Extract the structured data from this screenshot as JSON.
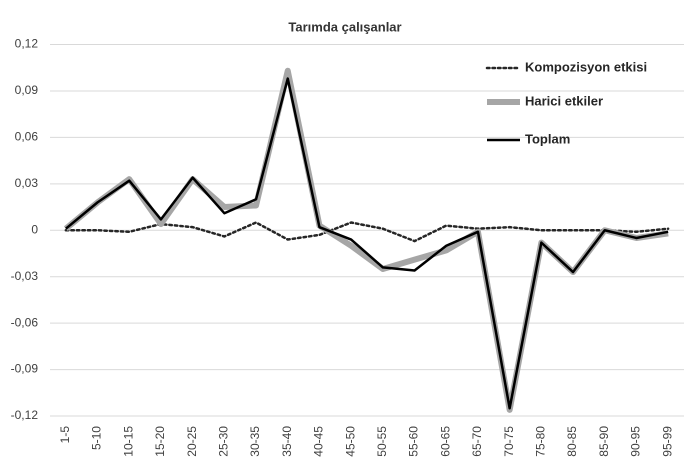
{
  "chart_data": {
    "type": "line",
    "title": "Tarımda çalışanlar",
    "categories": [
      "1-5",
      "5-10",
      "10-15",
      "15-20",
      "20-25",
      "25-30",
      "30-35",
      "35-40",
      "40-45",
      "45-50",
      "50-55",
      "55-60",
      "60-65",
      "65-70",
      "70-75",
      "75-80",
      "80-85",
      "85-90",
      "90-95",
      "95-99"
    ],
    "series": [
      {
        "name": "Kompozisyon etkisi",
        "color": "#262626",
        "line_style": "dotted",
        "values": [
          0.0,
          0.0,
          -0.001,
          0.004,
          0.002,
          -0.004,
          0.005,
          -0.006,
          -0.003,
          0.005,
          0.001,
          -0.007,
          0.003,
          0.001,
          0.002,
          0.0,
          0.0,
          0.0,
          -0.001,
          0.001
        ]
      },
      {
        "name": "Harici etkiler",
        "color": "#a6a6a6",
        "line_style": "solid",
        "values": [
          0.001,
          0.018,
          0.033,
          0.004,
          0.033,
          0.015,
          0.016,
          0.103,
          0.003,
          -0.01,
          -0.025,
          -0.019,
          -0.013,
          -0.001,
          -0.116,
          -0.008,
          -0.027,
          0.0,
          -0.005,
          -0.002
        ]
      },
      {
        "name": "Toplam",
        "color": "#000000",
        "line_style": "solid",
        "values": [
          0.001,
          0.018,
          0.032,
          0.007,
          0.034,
          0.011,
          0.02,
          0.098,
          0.002,
          -0.006,
          -0.024,
          -0.026,
          -0.01,
          -0.001,
          -0.115,
          -0.008,
          -0.027,
          0.0,
          -0.005,
          -0.001
        ]
      }
    ],
    "ylim": [
      -0.12,
      0.12
    ],
    "yticks": [
      {
        "value": -0.12,
        "label": "-0,12"
      },
      {
        "value": -0.09,
        "label": "-0,09"
      },
      {
        "value": -0.06,
        "label": "-0,06"
      },
      {
        "value": -0.03,
        "label": "-0,03"
      },
      0,
      {
        "value": 0.03,
        "label": "0,03"
      },
      {
        "value": 0.06,
        "label": "0,06"
      },
      {
        "value": 0.09,
        "label": "0,09"
      },
      {
        "value": 0.12,
        "label": "0,12"
      }
    ],
    "grid": true,
    "legend": "upper right"
  }
}
